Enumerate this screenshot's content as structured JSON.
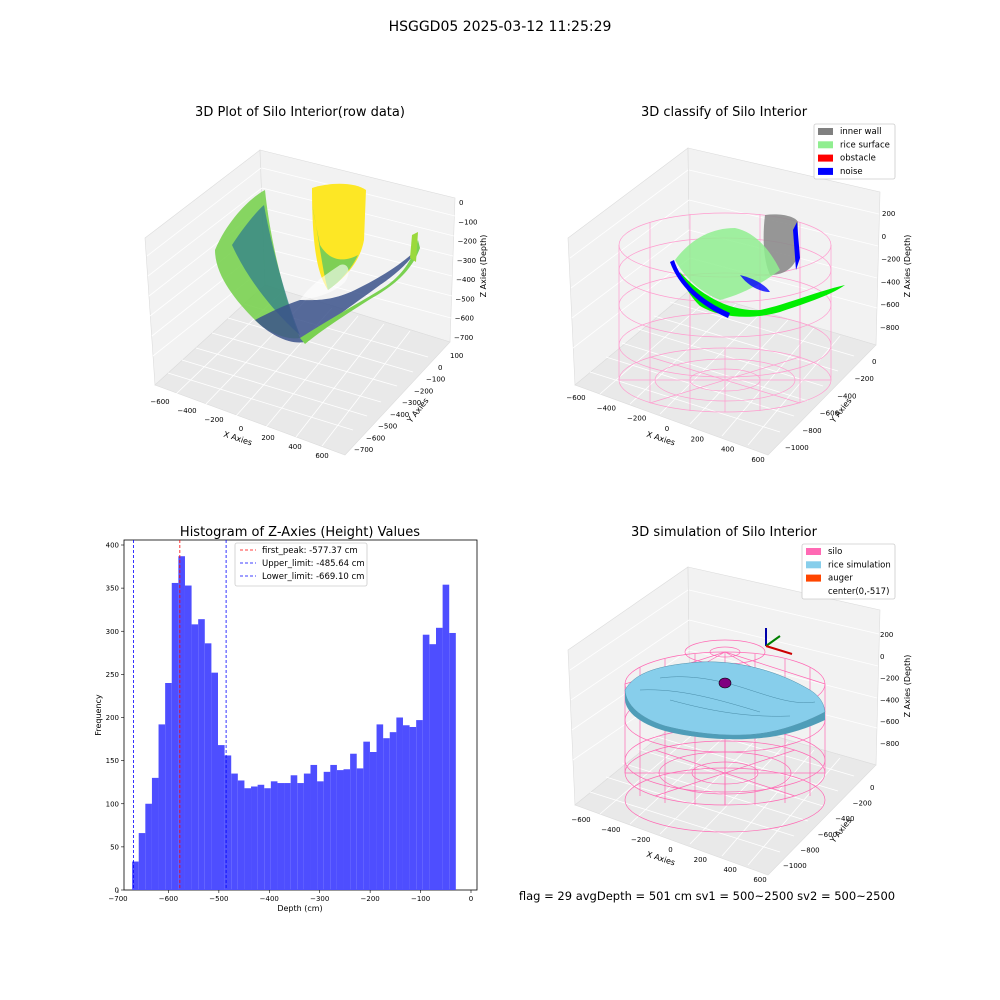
{
  "suptitle": "HSGGD05 2025-03-12 11:25:29",
  "footer": "flag = 29  avgDepth = 501 cm  sv1 = 500~2500  sv2 = 500~2500",
  "chart_data": [
    {
      "type": "scatter3d",
      "title": "3D Plot of Silo Interior(row data)",
      "xlabel": "X Axies",
      "ylabel": "Y Axies",
      "zlabel": "Z Axies (Depth)",
      "x_ticks": [
        "−600",
        "−400",
        "−200",
        "0",
        "200",
        "400",
        "600"
      ],
      "y_ticks": [
        "100",
        "0",
        "−100",
        "−200",
        "−300",
        "−400",
        "−500",
        "−600",
        "−700"
      ],
      "z_ticks": [
        "0",
        "−100",
        "−200",
        "−300",
        "−400",
        "−500",
        "−600",
        "−700"
      ],
      "colormap": "viridis"
    },
    {
      "type": "scatter3d",
      "title": "3D classify of Silo Interior",
      "xlabel": "X Axies",
      "ylabel": "Y Axies",
      "zlabel": "Z Axies (Depth)",
      "x_ticks": [
        "−600",
        "−400",
        "−200",
        "0",
        "200",
        "400",
        "600"
      ],
      "y_ticks": [
        "0",
        "−200",
        "−400",
        "−600",
        "−800",
        "−1000"
      ],
      "z_ticks": [
        "200",
        "0",
        "−200",
        "−400",
        "−600",
        "−800"
      ],
      "legend": [
        {
          "label": "inner wall",
          "color": "#808080"
        },
        {
          "label": "rice surface",
          "color": "#90ee90"
        },
        {
          "label": "obstacle",
          "color": "#ff0000"
        },
        {
          "label": "noise",
          "color": "#0000ff"
        }
      ],
      "legend_position": "top-right"
    },
    {
      "type": "bar",
      "title": "Histogram of Z-Axies (Height) Values",
      "xlabel": "Depth (cm)",
      "ylabel": "Frequency",
      "xlim": [
        -700,
        0
      ],
      "ylim": [
        0,
        400
      ],
      "x_ticks": [
        "−700",
        "−600",
        "−500",
        "−400",
        "−300",
        "−200",
        "−100",
        "0"
      ],
      "y_ticks": [
        "0",
        "50",
        "100",
        "150",
        "200",
        "250",
        "300",
        "350",
        "400"
      ],
      "bin_start": -672,
      "bin_width": 13.1,
      "values": [
        33,
        66,
        100,
        130,
        192,
        240,
        356,
        387,
        353,
        308,
        314,
        286,
        252,
        168,
        156,
        135,
        127,
        118,
        120,
        122,
        118,
        126,
        124,
        124,
        133,
        124,
        135,
        145,
        126,
        137,
        145,
        139,
        140,
        158,
        141,
        172,
        160,
        192,
        176,
        183,
        200,
        191,
        189,
        197,
        296,
        285,
        304,
        354,
        298
      ],
      "reference_lines": [
        {
          "label": "first_peak: -577.37 cm",
          "x": -577.37,
          "color": "#ff0000"
        },
        {
          "label": "Upper_limit: -485.64 cm",
          "x": -485.64,
          "color": "#0000ff"
        },
        {
          "label": "Lower_limit: -669.10 cm",
          "x": -669.1,
          "color": "#0000ff"
        }
      ],
      "bar_color": "#4a4aff",
      "legend_position": "top-center"
    },
    {
      "type": "surface3d",
      "title": "3D simulation of Silo Interior",
      "xlabel": "X Axies",
      "ylabel": "Y Axies",
      "zlabel": "Z Axies (Depth)",
      "x_ticks": [
        "−600",
        "−400",
        "−200",
        "0",
        "200",
        "400",
        "600"
      ],
      "y_ticks": [
        "0",
        "−200",
        "−400",
        "−600",
        "−800",
        "−1000"
      ],
      "z_ticks": [
        "200",
        "0",
        "−200",
        "−400",
        "−600",
        "−800"
      ],
      "legend": [
        {
          "label": "silo",
          "color": "#ff69b4"
        },
        {
          "label": "rice simulation",
          "color": "#87ceeb"
        },
        {
          "label": "auger",
          "color": "#ff4500"
        },
        {
          "label": "center(0,-517)",
          "color": "#ffffff"
        }
      ],
      "legend_position": "top-right"
    }
  ]
}
